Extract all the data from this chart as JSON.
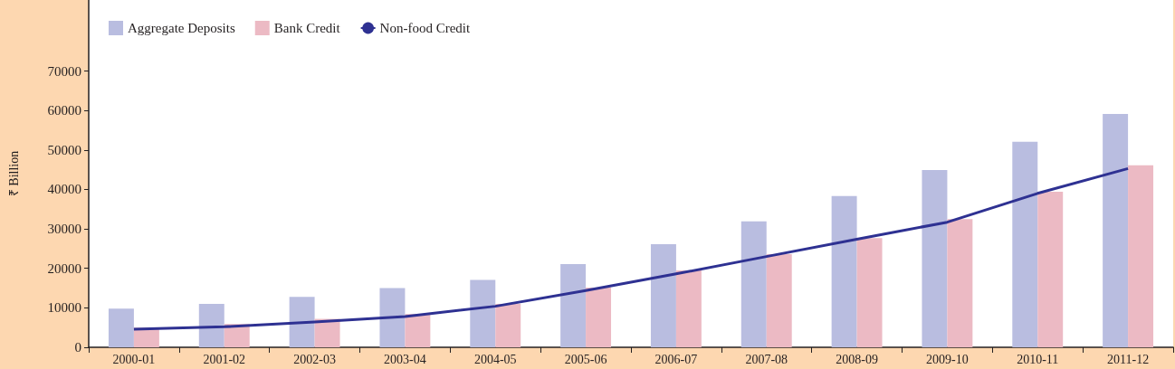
{
  "chart_data": {
    "type": "bar",
    "ylabel": "₹ Billion",
    "categories": [
      "2000-01",
      "2001-02",
      "2002-03",
      "2003-04",
      "2004-05",
      "2005-06",
      "2006-07",
      "2007-08",
      "2008-09",
      "2009-10",
      "2010-11",
      "2011-12"
    ],
    "series": [
      {
        "name": "Aggregate Deposits",
        "color": "#b9bde0",
        "values": [
          9800,
          11000,
          12800,
          15000,
          17100,
          21100,
          26100,
          31900,
          38300,
          44900,
          52100,
          59100
        ]
      },
      {
        "name": "Bank Credit",
        "color": "#ecbac4",
        "values": [
          5000,
          5900,
          7200,
          8400,
          11000,
          15100,
          19500,
          23600,
          27700,
          32500,
          39400,
          46100
        ]
      },
      {
        "name": "Non-food Credit",
        "type": "line",
        "color": "#2e3192",
        "marker": "none",
        "values": [
          4600,
          5200,
          6400,
          7800,
          10400,
          14400,
          18600,
          23000,
          27400,
          31700,
          39000,
          45300
        ]
      }
    ],
    "ylim": [
      0,
      88000
    ],
    "yticks": [
      0,
      10000,
      20000,
      30000,
      40000,
      50000,
      60000,
      70000
    ],
    "grid": false,
    "legend": "top left"
  }
}
